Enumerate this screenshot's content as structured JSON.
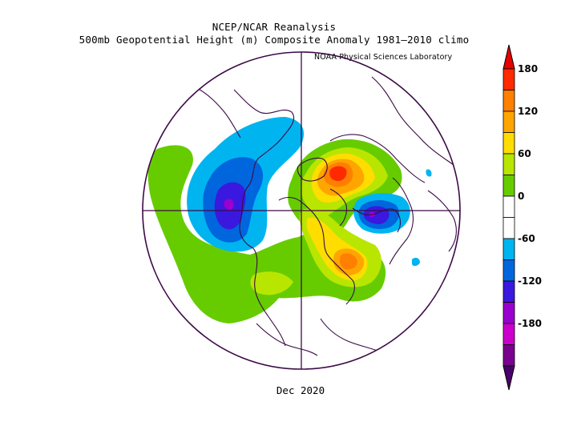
{
  "title_line1": "NCEP/NCAR Reanalysis",
  "title_line2": "500mb Geopotential Height (m) Composite Anomaly 1981–2010 climo",
  "credit": "NOAA Physical Sciences Laboratory",
  "date": "Dec 2020",
  "colorbar": {
    "ticks": [
      "180",
      "120",
      "60",
      "0",
      "-60",
      "-120",
      "-180"
    ],
    "bins": [
      {
        "color": "#ff2a00"
      },
      {
        "color": "#ff7f00"
      },
      {
        "color": "#ffa500"
      },
      {
        "color": "#ffdd00"
      },
      {
        "color": "#b8e600"
      },
      {
        "color": "#66cc00"
      },
      {
        "color": "#ffffff"
      },
      {
        "color": "#ffffff"
      },
      {
        "color": "#00b4f0"
      },
      {
        "color": "#0066dd"
      },
      {
        "color": "#3a18e0"
      },
      {
        "color": "#9a00d0"
      },
      {
        "color": "#cc00cc"
      },
      {
        "color": "#7a0090"
      }
    ],
    "top_arrow": "#e60000",
    "bottom_arrow": "#4a006a"
  },
  "map": {
    "projection": "north polar stereographic",
    "outline_color": "#3c0a46"
  }
}
